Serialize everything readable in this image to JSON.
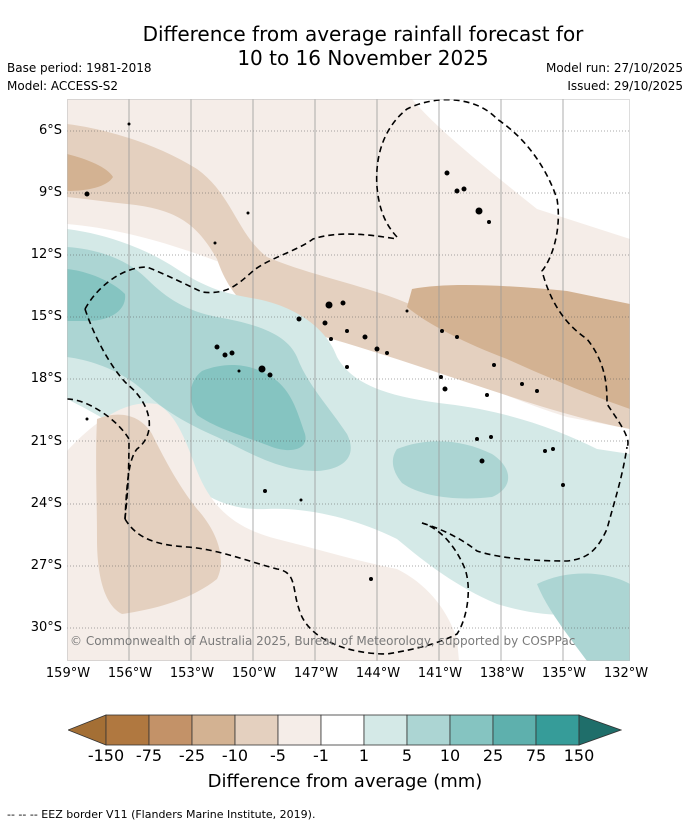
{
  "title": {
    "line1": "Difference from average rainfall forecast for",
    "line2": "10 to 16 November 2025"
  },
  "meta": {
    "base_period": "Base period: 1981-2018",
    "model": "Model: ACCESS-S2",
    "model_run": "Model run: 27/10/2025",
    "issued": "Issued: 29/10/2025"
  },
  "map": {
    "lat_labels": [
      "6°S",
      "9°S",
      "12°S",
      "15°S",
      "18°S",
      "21°S",
      "24°S",
      "27°S",
      "30°S"
    ],
    "lon_labels": [
      "159°W",
      "156°W",
      "153°W",
      "150°W",
      "147°W",
      "144°W",
      "141°W",
      "138°W",
      "135°W",
      "132°W"
    ],
    "credit": "© Commonwealth of Australia 2025, Bureau of Meteorology, supported by COSPPac"
  },
  "colorbar": {
    "title": "Difference from average (mm)",
    "labels": [
      "-150",
      "-75",
      "-25",
      "-10",
      "-5",
      "-1",
      "1",
      "5",
      "10",
      "25",
      "75",
      "150"
    ],
    "colors": [
      "#a46f35",
      "#b07840",
      "#c39268",
      "#d3b292",
      "#e4d0bf",
      "#f5ede8",
      "#ffffff",
      "#d4e9e7",
      "#acd5d3",
      "#85c4c1",
      "#5eb0ad",
      "#369c99",
      "#1f6e6a"
    ]
  },
  "legend": {
    "text": "--  --  -- EEZ border V11 (Flanders Marine Institute, 2019)."
  }
}
